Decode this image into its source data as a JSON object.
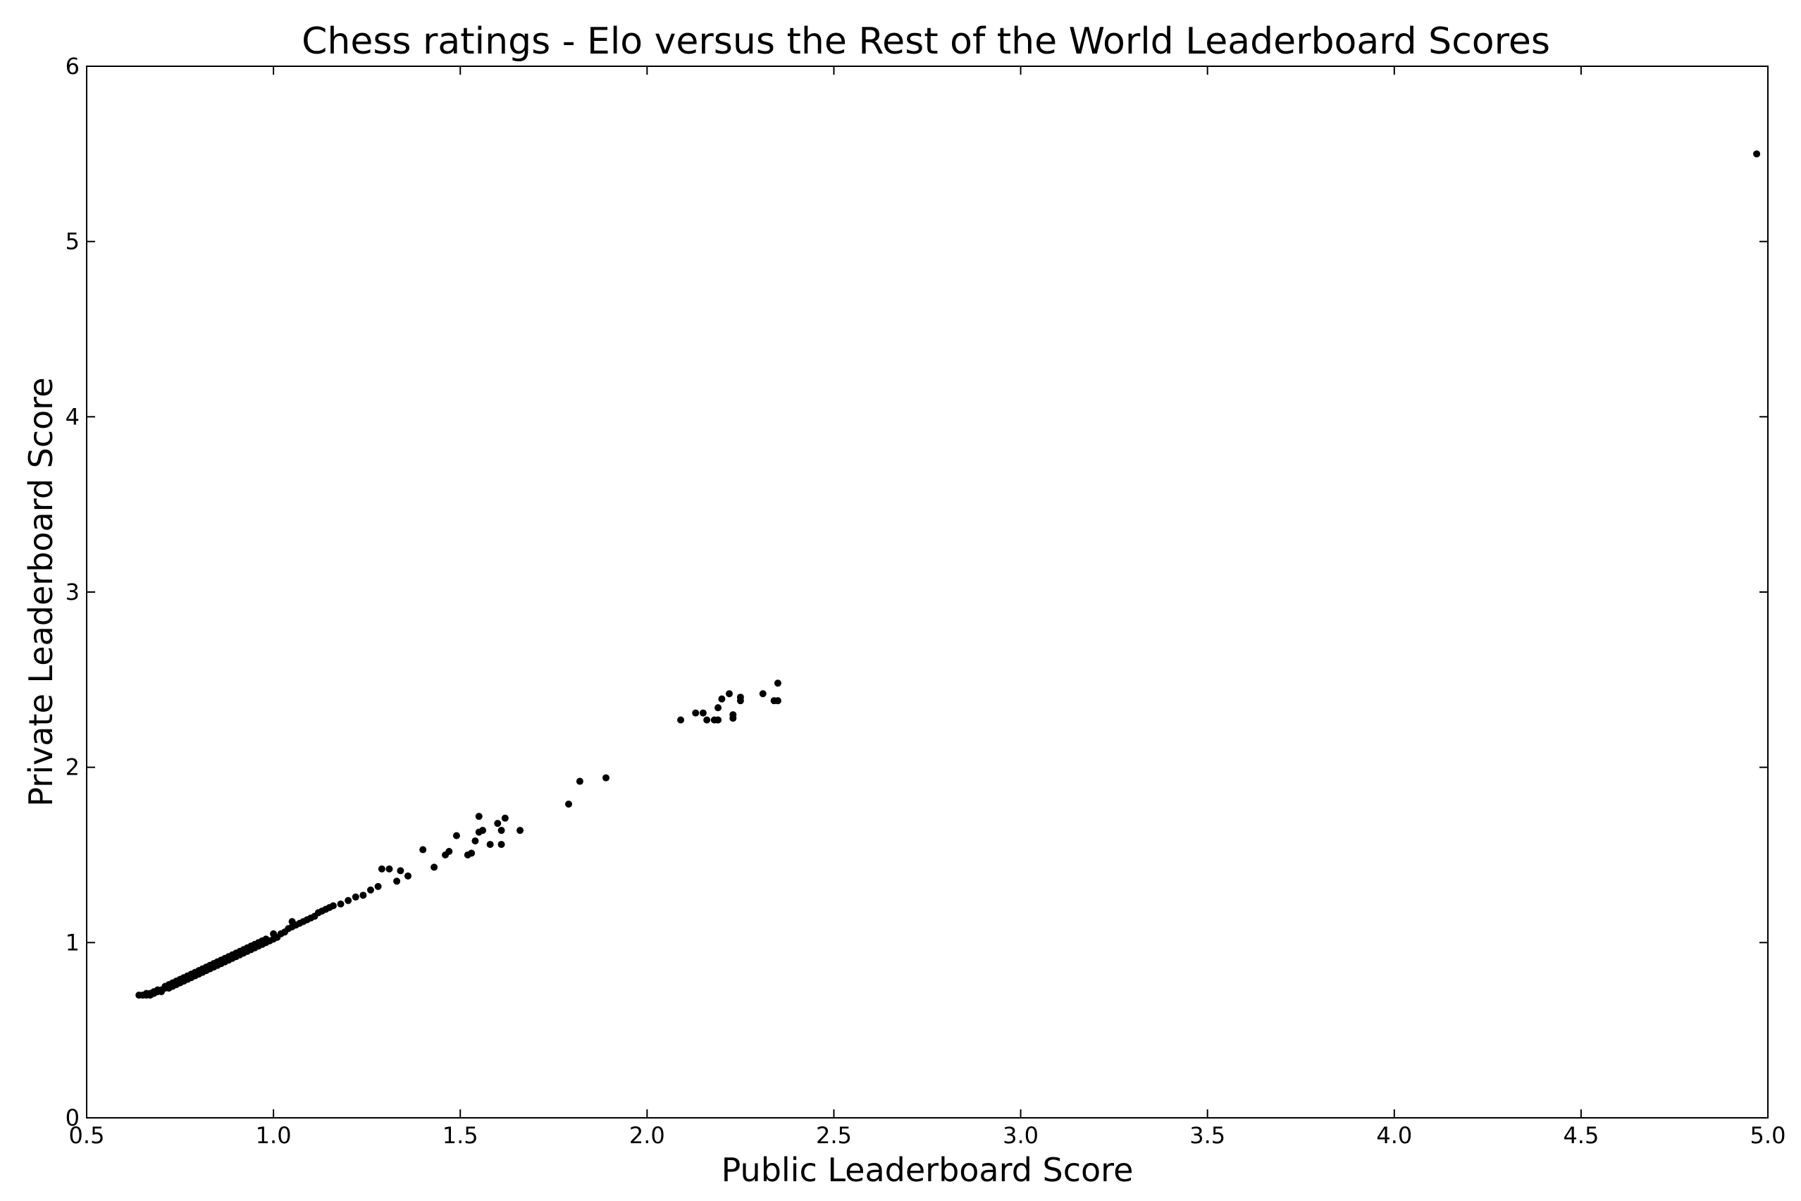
{
  "chart_data": {
    "type": "scatter",
    "title": "Chess ratings - Elo versus the Rest of the World Leaderboard Scores",
    "xlabel": "Public Leaderboard Score",
    "ylabel": "Private Leaderboard Score",
    "xlim": [
      0.5,
      5.0
    ],
    "ylim": [
      0,
      6
    ],
    "x_ticks": [
      0.5,
      1.0,
      1.5,
      2.0,
      2.5,
      3.0,
      3.5,
      4.0,
      4.5,
      5.0
    ],
    "x_tick_labels": [
      "0.5",
      "1.0",
      "1.5",
      "2.0",
      "2.5",
      "3.0",
      "3.5",
      "4.0",
      "4.5",
      "5.0"
    ],
    "y_ticks": [
      0,
      1,
      2,
      3,
      4,
      5,
      6
    ],
    "y_tick_labels": [
      "0",
      "1",
      "2",
      "3",
      "4",
      "5",
      "6"
    ],
    "grid": false,
    "marker_color": "#000000",
    "points": [
      [
        0.64,
        0.7
      ],
      [
        0.65,
        0.7
      ],
      [
        0.66,
        0.7
      ],
      [
        0.66,
        0.71
      ],
      [
        0.67,
        0.71
      ],
      [
        0.67,
        0.7
      ],
      [
        0.68,
        0.71
      ],
      [
        0.68,
        0.72
      ],
      [
        0.69,
        0.72
      ],
      [
        0.69,
        0.73
      ],
      [
        0.7,
        0.73
      ],
      [
        0.7,
        0.72
      ],
      [
        0.71,
        0.74
      ],
      [
        0.71,
        0.75
      ],
      [
        0.72,
        0.74
      ],
      [
        0.72,
        0.76
      ],
      [
        0.73,
        0.75
      ],
      [
        0.73,
        0.77
      ],
      [
        0.74,
        0.76
      ],
      [
        0.74,
        0.78
      ],
      [
        0.75,
        0.77
      ],
      [
        0.75,
        0.79
      ],
      [
        0.76,
        0.78
      ],
      [
        0.76,
        0.8
      ],
      [
        0.77,
        0.79
      ],
      [
        0.77,
        0.81
      ],
      [
        0.78,
        0.8
      ],
      [
        0.78,
        0.82
      ],
      [
        0.79,
        0.81
      ],
      [
        0.79,
        0.83
      ],
      [
        0.8,
        0.82
      ],
      [
        0.8,
        0.84
      ],
      [
        0.81,
        0.83
      ],
      [
        0.81,
        0.85
      ],
      [
        0.82,
        0.84
      ],
      [
        0.82,
        0.86
      ],
      [
        0.83,
        0.85
      ],
      [
        0.83,
        0.87
      ],
      [
        0.84,
        0.86
      ],
      [
        0.84,
        0.88
      ],
      [
        0.85,
        0.87
      ],
      [
        0.85,
        0.89
      ],
      [
        0.86,
        0.88
      ],
      [
        0.86,
        0.9
      ],
      [
        0.87,
        0.89
      ],
      [
        0.87,
        0.91
      ],
      [
        0.88,
        0.9
      ],
      [
        0.88,
        0.92
      ],
      [
        0.89,
        0.91
      ],
      [
        0.89,
        0.93
      ],
      [
        0.9,
        0.92
      ],
      [
        0.9,
        0.94
      ],
      [
        0.91,
        0.93
      ],
      [
        0.91,
        0.95
      ],
      [
        0.92,
        0.94
      ],
      [
        0.92,
        0.96
      ],
      [
        0.93,
        0.95
      ],
      [
        0.93,
        0.97
      ],
      [
        0.94,
        0.96
      ],
      [
        0.94,
        0.98
      ],
      [
        0.95,
        0.97
      ],
      [
        0.95,
        0.99
      ],
      [
        0.96,
        0.98
      ],
      [
        0.96,
        1.0
      ],
      [
        0.97,
        0.99
      ],
      [
        0.97,
        1.01
      ],
      [
        0.98,
        1.0
      ],
      [
        0.98,
        1.02
      ],
      [
        0.99,
        1.01
      ],
      [
        1.0,
        1.02
      ],
      [
        1.0,
        1.05
      ],
      [
        1.01,
        1.03
      ],
      [
        1.02,
        1.05
      ],
      [
        1.03,
        1.06
      ],
      [
        1.04,
        1.08
      ],
      [
        1.05,
        1.09
      ],
      [
        1.05,
        1.12
      ],
      [
        1.06,
        1.1
      ],
      [
        1.07,
        1.11
      ],
      [
        1.08,
        1.12
      ],
      [
        1.09,
        1.13
      ],
      [
        1.1,
        1.14
      ],
      [
        1.11,
        1.15
      ],
      [
        1.12,
        1.17
      ],
      [
        1.13,
        1.18
      ],
      [
        1.14,
        1.19
      ],
      [
        1.15,
        1.2
      ],
      [
        1.16,
        1.21
      ],
      [
        1.18,
        1.22
      ],
      [
        1.2,
        1.24
      ],
      [
        1.22,
        1.26
      ],
      [
        1.24,
        1.27
      ],
      [
        1.26,
        1.3
      ],
      [
        1.28,
        1.32
      ],
      [
        1.29,
        1.42
      ],
      [
        1.31,
        1.42
      ],
      [
        1.33,
        1.35
      ],
      [
        1.34,
        1.41
      ],
      [
        1.36,
        1.38
      ],
      [
        1.4,
        1.53
      ],
      [
        1.43,
        1.43
      ],
      [
        1.46,
        1.5
      ],
      [
        1.47,
        1.52
      ],
      [
        1.49,
        1.61
      ],
      [
        1.52,
        1.5
      ],
      [
        1.53,
        1.51
      ],
      [
        1.54,
        1.58
      ],
      [
        1.55,
        1.63
      ],
      [
        1.55,
        1.72
      ],
      [
        1.56,
        1.64
      ],
      [
        1.58,
        1.56
      ],
      [
        1.6,
        1.68
      ],
      [
        1.61,
        1.56
      ],
      [
        1.61,
        1.64
      ],
      [
        1.62,
        1.71
      ],
      [
        1.66,
        1.64
      ],
      [
        1.79,
        1.79
      ],
      [
        1.82,
        1.92
      ],
      [
        1.89,
        1.94
      ],
      [
        2.09,
        2.27
      ],
      [
        2.13,
        2.31
      ],
      [
        2.15,
        2.31
      ],
      [
        2.16,
        2.27
      ],
      [
        2.18,
        2.27
      ],
      [
        2.19,
        2.34
      ],
      [
        2.19,
        2.27
      ],
      [
        2.2,
        2.39
      ],
      [
        2.22,
        2.42
      ],
      [
        2.23,
        2.3
      ],
      [
        2.23,
        2.28
      ],
      [
        2.25,
        2.4
      ],
      [
        2.25,
        2.38
      ],
      [
        2.31,
        2.42
      ],
      [
        2.34,
        2.38
      ],
      [
        2.35,
        2.38
      ],
      [
        2.35,
        2.48
      ],
      [
        4.97,
        5.5
      ]
    ]
  }
}
